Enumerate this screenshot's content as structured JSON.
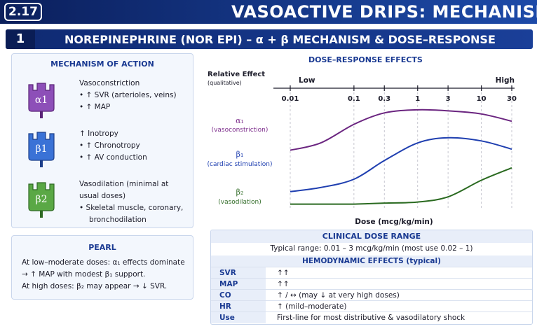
{
  "header": {
    "section_number": "2.17",
    "title": "VASOACTIVE DRIPS: MECHANISM"
  },
  "section": {
    "badge": "1",
    "title": "NOREPINEPHRINE (NOR EPI) – α + β MECHANISM & DOSE–RESPONSE"
  },
  "mechanism": {
    "title": "MECHANISM OF ACTION",
    "receptors": [
      {
        "label": "α1",
        "color": "#7b3aa6",
        "lines": [
          "Vasoconstriction",
          "• ↑ SVR (arterioles, veins)",
          "• ↑ MAP"
        ]
      },
      {
        "label": "β1",
        "color": "#2f5fc8",
        "lines": [
          "↑ Inotropy",
          "• ↑ Chronotropy",
          "• ↑ AV conduction"
        ]
      },
      {
        "label": "β2",
        "color": "#4d9a3a",
        "lines": [
          "Vasodilation (minimal at",
          "usual doses)",
          "• Skeletal muscle, coronary,",
          "bronchodilation"
        ]
      }
    ]
  },
  "pearl": {
    "title": "PEARL",
    "lines": [
      "At low–moderate doses: α₁ effects dominate",
      "→ ↑ MAP with modest β₁ support.",
      "At high doses: β₂ may appear → ↓ SVR."
    ]
  },
  "chart": {
    "title": "DOSE–RESPONSE EFFECTS",
    "y_label_1": "Relative Effect",
    "y_label_2": "(qualitative)",
    "low_label": "Low",
    "high_label": "High",
    "x_label": "Dose (mcg/kg/min)",
    "series_labels": [
      {
        "name": "α₁",
        "sub": "(vasoconstriction)",
        "color": "#7b2a8a"
      },
      {
        "name": "β₁",
        "sub": "(cardiac stimulation)",
        "color": "#1f3fb0"
      },
      {
        "name": "β₂",
        "sub": "(vasodilation)",
        "color": "#2f6a25"
      }
    ]
  },
  "chart_data": {
    "type": "line",
    "title": "DOSE–RESPONSE EFFECTS",
    "xlabel": "Dose (mcg/kg/min)",
    "ylabel": "Relative Effect (qualitative)",
    "x_scale": "log",
    "x_ticks": [
      0.01,
      0.1,
      0.3,
      1,
      3,
      10,
      30
    ],
    "x_tick_labels": [
      "0.01",
      "0.1",
      "0.3",
      "1",
      "3",
      "10",
      "30"
    ],
    "ylim": [
      0,
      1
    ],
    "series": [
      {
        "name": "α₁",
        "color": "#6b2580",
        "x": [
          0.01,
          0.03,
          0.1,
          0.3,
          1,
          3,
          10,
          30
        ],
        "y": [
          0.55,
          0.62,
          0.8,
          0.91,
          0.94,
          0.93,
          0.9,
          0.83
        ]
      },
      {
        "name": "β₁",
        "color": "#1f3fb0",
        "x": [
          0.01,
          0.03,
          0.1,
          0.3,
          1,
          3,
          10,
          30
        ],
        "y": [
          0.15,
          0.19,
          0.27,
          0.45,
          0.62,
          0.67,
          0.64,
          0.56
        ]
      },
      {
        "name": "β₂",
        "color": "#2a6a20",
        "x": [
          0.01,
          0.1,
          0.3,
          1,
          3,
          10,
          30
        ],
        "y": [
          0.03,
          0.03,
          0.04,
          0.05,
          0.1,
          0.26,
          0.38
        ]
      }
    ]
  },
  "clinical": {
    "title": "CLINICAL DOSE RANGE",
    "typical": "Typical range: 0.01 – 3 mcg/kg/min (most use 0.02 – 1)",
    "hemo_title": "HEMODYNAMIC EFFECTS (typical)",
    "rows": [
      {
        "label": "SVR",
        "value": "↑↑"
      },
      {
        "label": "MAP",
        "value": "↑↑"
      },
      {
        "label": "CO",
        "value": "↑ / ↔ (may ↓ at very high doses)"
      },
      {
        "label": "HR",
        "value": "↑ (mild–moderate)"
      },
      {
        "label": "Use",
        "value": "First-line for most distributive & vasodilatory shock"
      }
    ]
  }
}
